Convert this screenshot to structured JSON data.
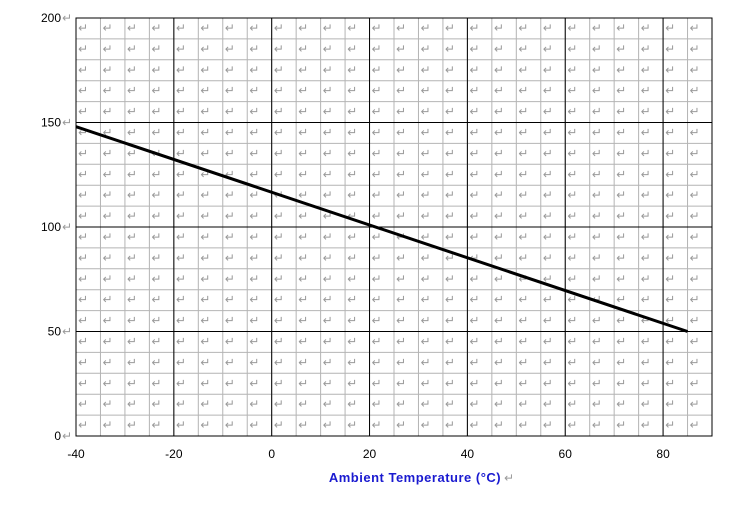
{
  "chart_data": {
    "type": "line",
    "title": "",
    "xlabel": "Ambient Temperature (°C)",
    "ylabel": "",
    "xlim": [
      -40,
      90
    ],
    "ylim": [
      0,
      200
    ],
    "x_ticks": [
      -40,
      -20,
      0,
      20,
      40,
      60,
      80
    ],
    "y_ticks": [
      0,
      50,
      100,
      150,
      200
    ],
    "grid": true,
    "series": [
      {
        "x": [
          -40,
          85
        ],
        "y": [
          148,
          50
        ]
      }
    ],
    "line_color": "#000000",
    "paragraph_mark": "↵"
  }
}
